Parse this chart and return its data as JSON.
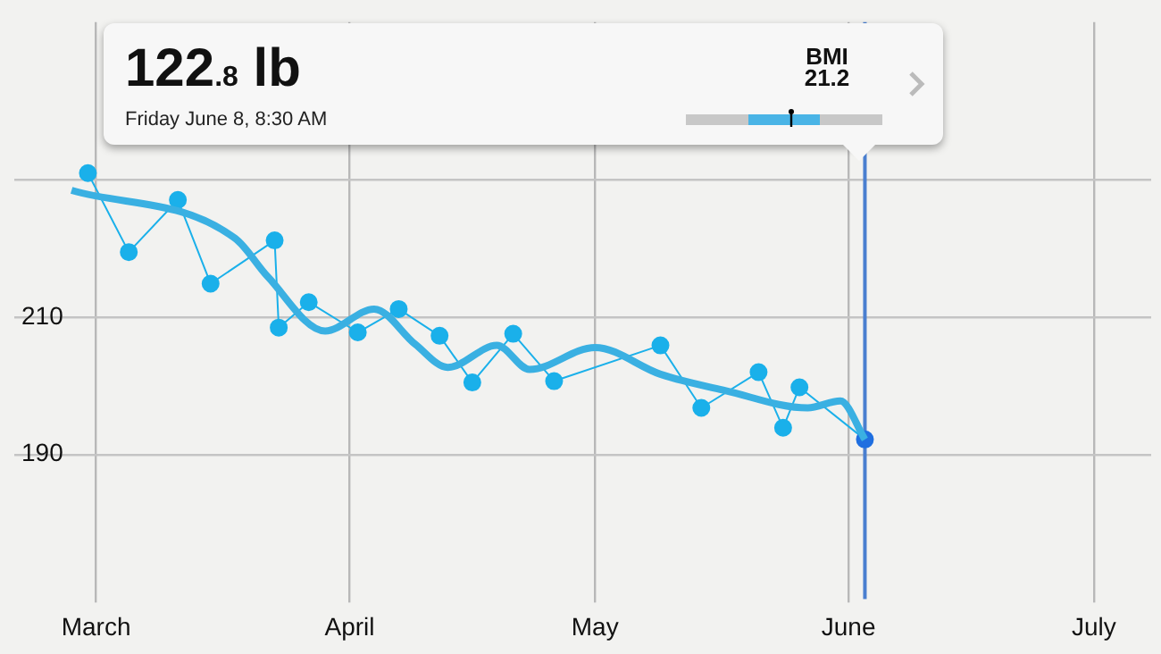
{
  "chart_data": {
    "type": "line",
    "xlim": [
      "--02-20",
      "--07-08"
    ],
    "ylim": [
      170,
      253
    ],
    "xticks": [
      {
        "value": "--03-01",
        "label": "March"
      },
      {
        "value": "--04-01",
        "label": "April"
      },
      {
        "value": "--05-01",
        "label": "May"
      },
      {
        "value": "--06-01",
        "label": "June"
      },
      {
        "value": "--07-01",
        "label": "July"
      }
    ],
    "yticks": [
      190,
      210,
      {
        "value": 230,
        "label": null
      }
    ],
    "grid": true,
    "legend": false,
    "series": [
      {
        "color": "#1ab0ea",
        "marker": "circle",
        "colors": [
          "#1ab0ea",
          "#1ab0ea",
          "#1ab0ea",
          "#1ab0ea",
          "#1ab0ea",
          "#1ab0ea",
          "#1ab0ea",
          "#1ab0ea",
          "#1ab0ea",
          "#1ab0ea",
          "#1ab0ea",
          "#1ab0ea",
          "#1ab0ea",
          "#1ab0ea",
          "#1ab0ea",
          "#1ab0ea",
          "#1ab0ea",
          "#1ab0ea",
          "#1f6fe0"
        ],
        "x": [
          "--02-29",
          "--03-05",
          "--03-11",
          "--03-15",
          "--03-22T20:00",
          "--03-23T08:00",
          "--03-27",
          "--04-02",
          "--04-07",
          "--04-12",
          "--04-16",
          "--04-21",
          "--04-26",
          "--05-09",
          "--05-14",
          "--05-21",
          "--05-24",
          "--05-26",
          "--06-03"
        ],
        "values": [
          231.0,
          219.5,
          227.1,
          214.9,
          221.2,
          208.5,
          212.2,
          207.8,
          211.2,
          207.3,
          200.5,
          207.6,
          200.7,
          205.9,
          196.8,
          202.0,
          193.9,
          199.8,
          192.2
        ]
      },
      {
        "color": "#3ab0e2",
        "marker": "none",
        "x": [
          "--02-27",
          "--03-18",
          "--03-22",
          "--03-29",
          "--04-04",
          "--04-09",
          "--04-13",
          "--04-19",
          "--04-23",
          "--05-01",
          "--05-09",
          "--05-17",
          "--05-27",
          "--05-31",
          "--06-03"
        ],
        "values": [
          228.5,
          221.5,
          215.9,
          208.0,
          211.2,
          206.1,
          202.7,
          205.9,
          202.4,
          205.6,
          201.7,
          199.3,
          196.8,
          197.8,
          192.2
        ]
      }
    ],
    "ref_lines": [
      {
        "axis": "x",
        "value": "--06-03",
        "color": "#4a7fd0"
      }
    ],
    "annotations": [
      "122.8 lb",
      "Friday June 8, 8:30 AM",
      "BMI",
      "21.2"
    ]
  }
}
